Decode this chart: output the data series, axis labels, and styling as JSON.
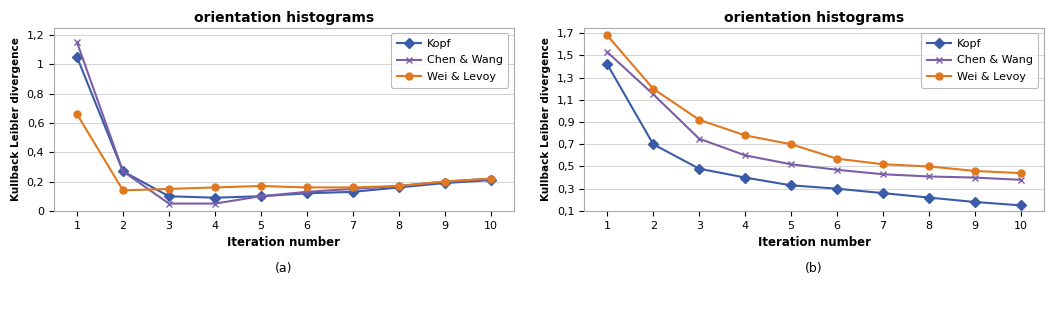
{
  "title": "orientation histograms",
  "xlabel": "Iteration number",
  "ylabel": "Kullback Leibler divergence",
  "iterations": [
    1,
    2,
    3,
    4,
    5,
    6,
    7,
    8,
    9,
    10
  ],
  "plot_a": {
    "kopf": [
      1.05,
      0.27,
      0.1,
      0.09,
      0.1,
      0.12,
      0.13,
      0.16,
      0.19,
      0.21
    ],
    "chen_wang": [
      1.15,
      0.27,
      0.05,
      0.05,
      0.1,
      0.13,
      0.15,
      0.17,
      0.2,
      0.22
    ],
    "wei_levoy": [
      0.66,
      0.14,
      0.15,
      0.16,
      0.17,
      0.16,
      0.16,
      0.17,
      0.2,
      0.22
    ],
    "ylim": [
      0,
      1.25
    ],
    "yticks": [
      0,
      0.2,
      0.4,
      0.6,
      0.8,
      1.0,
      1.2
    ],
    "ytick_labels": [
      "0",
      "0,2",
      "0,4",
      "0,6",
      "0,8",
      "1",
      "1,2"
    ],
    "subtitle": "(a)"
  },
  "plot_b": {
    "kopf": [
      1.42,
      0.7,
      0.48,
      0.4,
      0.33,
      0.3,
      0.26,
      0.22,
      0.18,
      0.15
    ],
    "chen_wang": [
      1.53,
      1.15,
      0.75,
      0.6,
      0.52,
      0.47,
      0.43,
      0.41,
      0.4,
      0.38
    ],
    "wei_levoy": [
      1.68,
      1.2,
      0.92,
      0.78,
      0.7,
      0.57,
      0.52,
      0.5,
      0.46,
      0.44
    ],
    "ylim": [
      0.1,
      1.75
    ],
    "yticks": [
      0.1,
      0.3,
      0.5,
      0.7,
      0.9,
      1.1,
      1.3,
      1.5,
      1.7
    ],
    "ytick_labels": [
      "0,1",
      "0,3",
      "0,5",
      "0,7",
      "0,9",
      "1,1",
      "1,3",
      "1,5",
      "1,7"
    ],
    "subtitle": "(b)"
  },
  "kopf_color": "#3a5ca8",
  "chen_wang_color": "#7b5ea7",
  "wei_levoy_color": "#e07820",
  "kopf_marker": "D",
  "chen_wang_marker": "x",
  "wei_levoy_marker": "o",
  "line_width": 1.5,
  "marker_size": 5,
  "legend_labels": [
    "Kopf",
    "Chen & Wang",
    "Wei & Levoy"
  ],
  "bg_color": "#ffffff",
  "grid_color": "#cccccc",
  "border_color": "#aaaaaa"
}
